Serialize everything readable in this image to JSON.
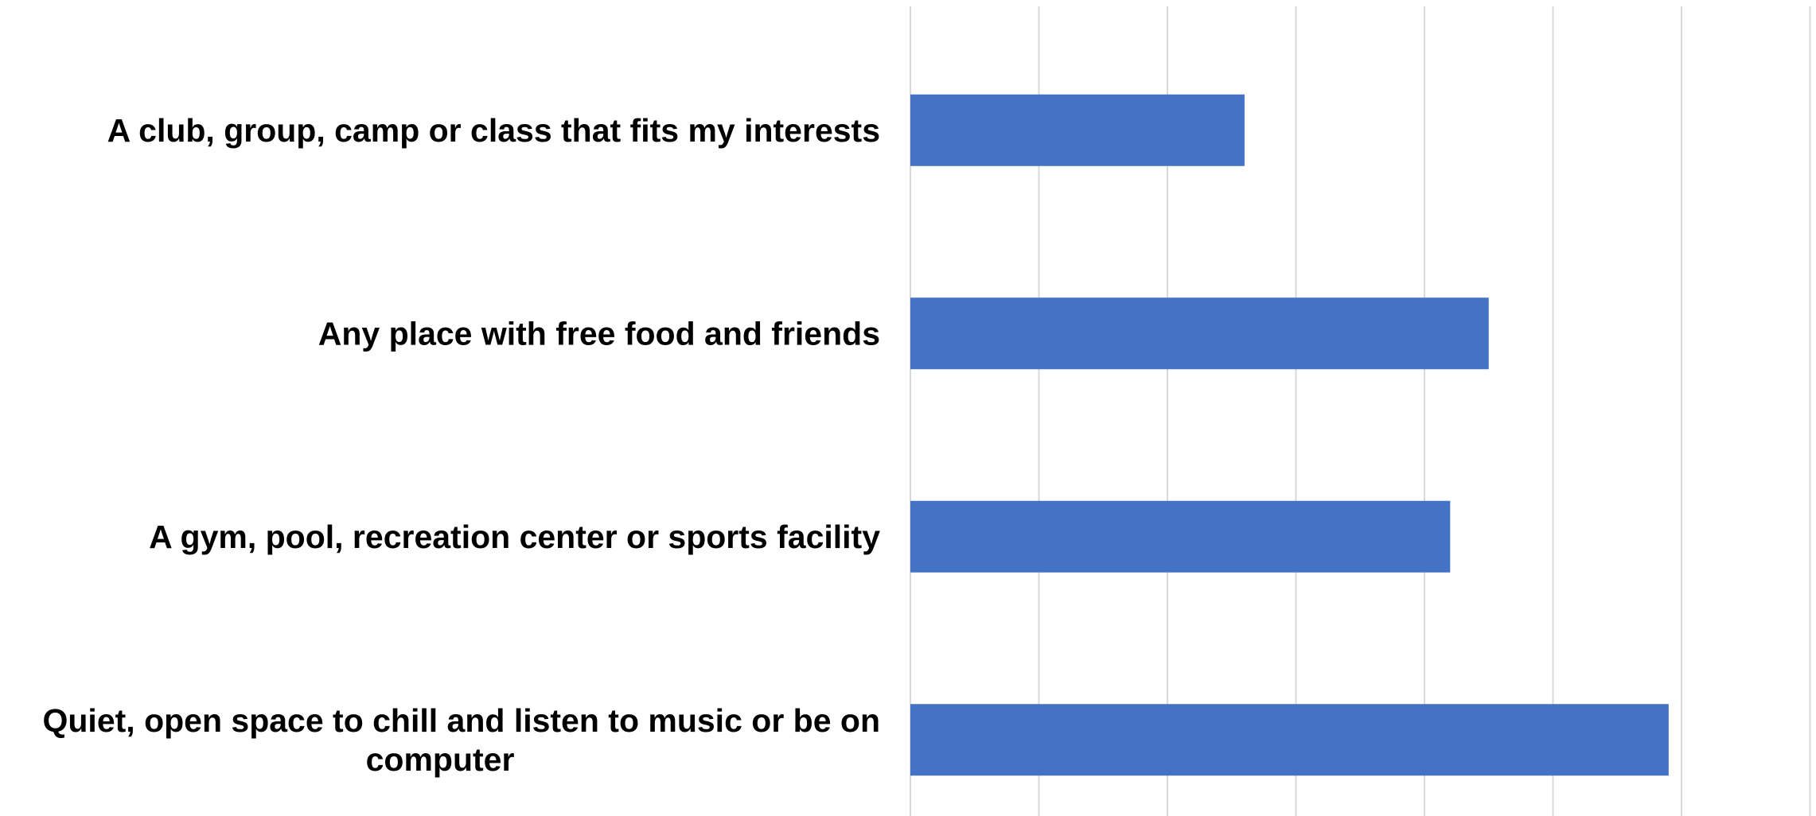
{
  "chart_data": {
    "type": "bar",
    "orientation": "horizontal",
    "title": "",
    "xlabel": "",
    "ylabel": "",
    "categories": [
      "A club, group, camp or class that fits my interests",
      "Any place with free food and friends",
      "A gym, pool, recreation center or sports facility",
      "Quiet, open space to chill and listen to music or be on computer"
    ],
    "category_lines": [
      [
        "A club, group, camp or class that fits my interests"
      ],
      [
        "Any place with free food and friends"
      ],
      [
        "A gym, pool, recreation center or sports facility"
      ],
      [
        "Quiet, open space to chill and listen to music or be on",
        "computer"
      ]
    ],
    "values": [
      2.6,
      4.5,
      4.2,
      5.9
    ],
    "xlim": [
      0,
      7
    ],
    "grid_step": 1,
    "grid": true,
    "tick_labels_visible": false,
    "legend": "none",
    "bar_color": "#4472C4",
    "grid_color": "#D9D9D9"
  }
}
